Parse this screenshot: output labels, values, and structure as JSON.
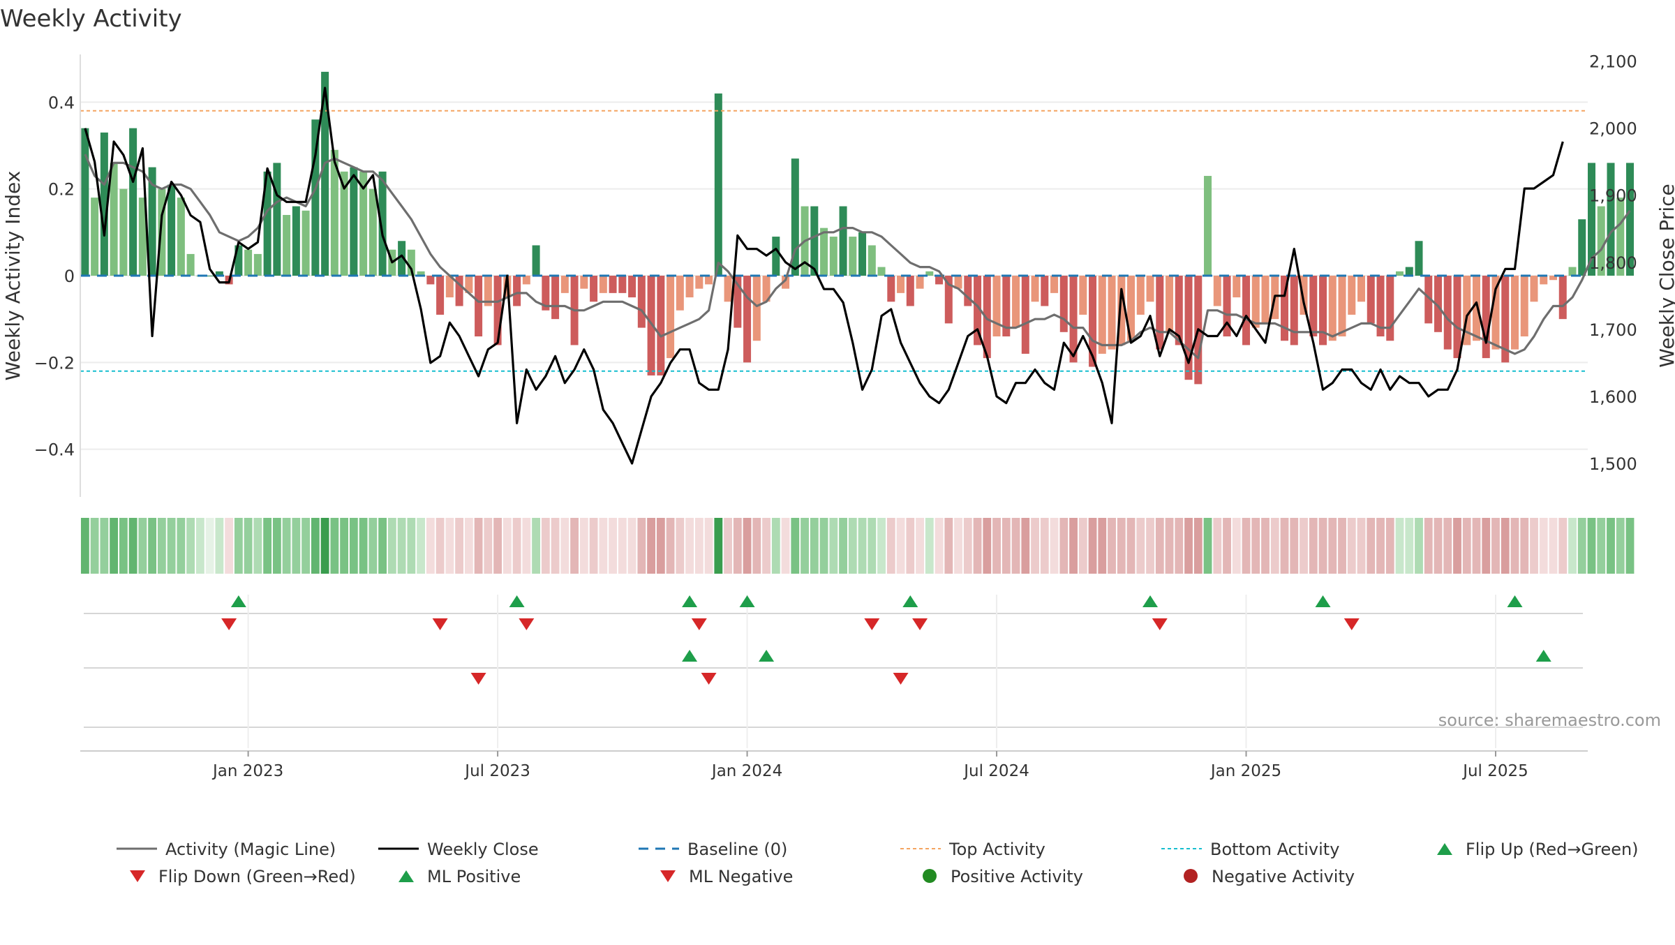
{
  "colors": {
    "bar_strong_green": "#2e8b57",
    "bar_light_green": "#7fbf7f",
    "bar_strong_red": "#cd5c5c",
    "bar_light_red": "#e9967a",
    "magic_line": "#6e6e6e",
    "close_line": "#000000",
    "baseline": "#1f77b4",
    "top_line": "#f4a460",
    "bottom_line": "#17becf",
    "marker_up": "#1e9e4a",
    "marker_down": "#d62728",
    "marker_pos": "#228b22",
    "marker_neg": "#b22222"
  },
  "chart_data": {
    "type": "bar",
    "title": "Weekly Activity",
    "ylabel": "Weekly Activity Index",
    "y2label": "Weekly Close Price",
    "ylim": [
      -0.51,
      0.51
    ],
    "y2lim": [
      1450,
      2110
    ],
    "yticks": [
      {
        "value": 0.4,
        "label": "0.4"
      },
      {
        "value": 0.2,
        "label": "0.2"
      },
      {
        "value": 0,
        "label": "0"
      },
      {
        "value": -0.2,
        "label": "−0.2"
      },
      {
        "value": -0.4,
        "label": "−0.4"
      }
    ],
    "y2ticks": [
      {
        "value": 2100,
        "label": "2,100"
      },
      {
        "value": 2000,
        "label": "2,000"
      },
      {
        "value": 1900,
        "label": "1,900"
      },
      {
        "value": 1800,
        "label": "1,800"
      },
      {
        "value": 1700,
        "label": "1,700"
      },
      {
        "value": 1600,
        "label": "1,600"
      },
      {
        "value": 1500,
        "label": "1,500"
      }
    ],
    "xticks": [
      {
        "week": 17,
        "label": "Jan 2023"
      },
      {
        "week": 43,
        "label": "Jul 2023"
      },
      {
        "week": 69,
        "label": "Jan 2024"
      },
      {
        "week": 95,
        "label": "Jul 2024"
      },
      {
        "week": 121,
        "label": "Jan 2025"
      },
      {
        "week": 147,
        "label": "Jul 2025"
      }
    ],
    "x_domain": [
      -0.5,
      156.6
    ],
    "top_activity": 0.38,
    "bottom_activity": -0.22,
    "baseline": 0,
    "activity_values": [
      0.34,
      0.18,
      0.33,
      0.26,
      0.2,
      0.34,
      0.18,
      0.25,
      0.2,
      0.21,
      0.18,
      0.05,
      0.0,
      0.0,
      0.01,
      -0.02,
      0.07,
      0.06,
      0.05,
      0.24,
      0.26,
      0.14,
      0.16,
      0.15,
      0.36,
      0.47,
      0.29,
      0.24,
      0.25,
      0.24,
      0.2,
      0.24,
      0.06,
      0.08,
      0.06,
      0.01,
      -0.02,
      -0.09,
      -0.05,
      -0.07,
      -0.04,
      -0.14,
      -0.07,
      -0.16,
      -0.05,
      -0.07,
      -0.02,
      0.07,
      -0.08,
      -0.1,
      -0.04,
      -0.16,
      -0.03,
      -0.06,
      -0.04,
      -0.04,
      -0.04,
      -0.05,
      -0.12,
      -0.23,
      -0.23,
      -0.19,
      -0.08,
      -0.05,
      -0.03,
      -0.02,
      0.42,
      -0.06,
      -0.12,
      -0.2,
      -0.15,
      -0.06,
      0.09,
      -0.03,
      0.27,
      0.16,
      0.16,
      0.11,
      0.09,
      0.16,
      0.09,
      0.1,
      0.07,
      0.02,
      -0.06,
      -0.04,
      -0.07,
      -0.03,
      0.01,
      -0.02,
      -0.11,
      -0.03,
      -0.07,
      -0.16,
      -0.19,
      -0.14,
      -0.14,
      -0.12,
      -0.18,
      -0.06,
      -0.07,
      -0.04,
      -0.13,
      -0.2,
      -0.09,
      -0.21,
      -0.18,
      -0.17,
      -0.16,
      -0.15,
      -0.09,
      -0.06,
      -0.17,
      -0.13,
      -0.16,
      -0.24,
      -0.25,
      0.23,
      -0.07,
      -0.14,
      -0.05,
      -0.16,
      -0.12,
      -0.11,
      -0.1,
      -0.15,
      -0.16,
      -0.09,
      -0.14,
      -0.16,
      -0.15,
      -0.14,
      -0.09,
      -0.06,
      -0.11,
      -0.14,
      -0.15,
      0.01,
      0.02,
      0.08,
      -0.11,
      -0.13,
      -0.17,
      -0.19,
      -0.16,
      -0.15,
      -0.19,
      -0.17,
      -0.2,
      -0.17,
      -0.14,
      -0.06,
      -0.02,
      -0.01,
      -0.1,
      0.02,
      0.13,
      0.26,
      0.16,
      0.26,
      0.18,
      0.26
    ],
    "magic_line_values": [
      0.28,
      0.23,
      0.21,
      0.26,
      0.26,
      0.25,
      0.24,
      0.21,
      0.2,
      0.21,
      0.21,
      0.2,
      0.17,
      0.14,
      0.1,
      0.09,
      0.08,
      0.09,
      0.11,
      0.15,
      0.17,
      0.18,
      0.17,
      0.16,
      0.2,
      0.26,
      0.27,
      0.26,
      0.25,
      0.24,
      0.24,
      0.22,
      0.19,
      0.16,
      0.13,
      0.09,
      0.05,
      0.02,
      0.0,
      -0.02,
      -0.04,
      -0.06,
      -0.06,
      -0.06,
      -0.05,
      -0.04,
      -0.04,
      -0.06,
      -0.07,
      -0.07,
      -0.07,
      -0.08,
      -0.08,
      -0.07,
      -0.06,
      -0.06,
      -0.06,
      -0.07,
      -0.08,
      -0.11,
      -0.14,
      -0.13,
      -0.12,
      -0.11,
      -0.1,
      -0.08,
      0.03,
      0.01,
      -0.02,
      -0.05,
      -0.07,
      -0.06,
      -0.03,
      -0.01,
      0.06,
      0.08,
      0.09,
      0.1,
      0.1,
      0.11,
      0.11,
      0.1,
      0.1,
      0.09,
      0.07,
      0.05,
      0.03,
      0.02,
      0.02,
      0.01,
      -0.02,
      -0.03,
      -0.05,
      -0.07,
      -0.1,
      -0.11,
      -0.12,
      -0.12,
      -0.11,
      -0.1,
      -0.1,
      -0.09,
      -0.1,
      -0.12,
      -0.12,
      -0.15,
      -0.16,
      -0.16,
      -0.16,
      -0.15,
      -0.13,
      -0.12,
      -0.13,
      -0.13,
      -0.15,
      -0.17,
      -0.19,
      -0.08,
      -0.08,
      -0.09,
      -0.09,
      -0.1,
      -0.11,
      -0.11,
      -0.11,
      -0.12,
      -0.13,
      -0.13,
      -0.13,
      -0.13,
      -0.14,
      -0.13,
      -0.12,
      -0.11,
      -0.11,
      -0.12,
      -0.12,
      -0.09,
      -0.06,
      -0.03,
      -0.05,
      -0.07,
      -0.1,
      -0.12,
      -0.13,
      -0.14,
      -0.15,
      -0.16,
      -0.17,
      -0.18,
      -0.17,
      -0.14,
      -0.1,
      -0.07,
      -0.07,
      -0.05,
      -0.01,
      0.04,
      0.06,
      0.1,
      0.12,
      0.15
    ],
    "close_values": [
      2000,
      1950,
      1840,
      1980,
      1960,
      1920,
      1970,
      1690,
      1870,
      1920,
      1900,
      1870,
      1860,
      1790,
      1770,
      1770,
      1830,
      1820,
      1830,
      1940,
      1900,
      1890,
      1890,
      1890,
      1960,
      2060,
      1950,
      1910,
      1930,
      1910,
      1930,
      1840,
      1800,
      1810,
      1790,
      1730,
      1650,
      1660,
      1710,
      1690,
      1660,
      1630,
      1670,
      1680,
      1780,
      1560,
      1640,
      1610,
      1630,
      1660,
      1620,
      1640,
      1670,
      1640,
      1580,
      1560,
      1530,
      1500,
      1550,
      1600,
      1620,
      1650,
      1670,
      1670,
      1620,
      1610,
      1610,
      1670,
      1840,
      1820,
      1820,
      1810,
      1820,
      1800,
      1790,
      1800,
      1790,
      1760,
      1760,
      1740,
      1680,
      1610,
      1640,
      1720,
      1730,
      1680,
      1650,
      1620,
      1600,
      1590,
      1610,
      1650,
      1690,
      1700,
      1660,
      1600,
      1590,
      1620,
      1620,
      1640,
      1620,
      1610,
      1680,
      1660,
      1690,
      1660,
      1620,
      1560,
      1760,
      1680,
      1690,
      1720,
      1660,
      1700,
      1690,
      1650,
      1700,
      1690,
      1690,
      1710,
      1690,
      1720,
      1700,
      1680,
      1750,
      1750,
      1820,
      1740,
      1680,
      1610,
      1620,
      1640,
      1640,
      1620,
      1610,
      1640,
      1610,
      1630,
      1620,
      1620,
      1600,
      1610,
      1610,
      1640,
      1720,
      1740,
      1680,
      1760,
      1790,
      1790,
      1910,
      1910,
      1920,
      1930,
      1980
    ],
    "heat_strip": [
      5,
      3,
      3,
      5,
      4,
      5,
      3,
      4,
      3,
      3,
      3,
      2,
      1,
      0,
      1,
      -1,
      3,
      3,
      2,
      4,
      4,
      3,
      3,
      3,
      5,
      6,
      4,
      4,
      4,
      4,
      3,
      4,
      2,
      2,
      2,
      1,
      -1,
      -2,
      -1,
      -2,
      -1,
      -3,
      -2,
      -3,
      -1,
      -2,
      -1,
      2,
      -2,
      -2,
      -1,
      -3,
      -1,
      -2,
      -1,
      -1,
      -1,
      -1,
      -3,
      -4,
      -4,
      -3,
      -2,
      -1,
      -1,
      -1,
      6,
      -2,
      -3,
      -4,
      -3,
      -2,
      2,
      -1,
      4,
      3,
      3,
      3,
      2,
      3,
      2,
      2,
      2,
      1,
      -2,
      -1,
      -2,
      -1,
      1,
      -1,
      -3,
      -1,
      -2,
      -3,
      -4,
      -3,
      -3,
      -3,
      -4,
      -2,
      -2,
      -1,
      -3,
      -4,
      -2,
      -4,
      -4,
      -3,
      -3,
      -3,
      -2,
      -2,
      -3,
      -3,
      -3,
      -4,
      -4,
      4,
      -2,
      -3,
      -1,
      -3,
      -3,
      -3,
      -2,
      -3,
      -3,
      -2,
      -3,
      -3,
      -3,
      -3,
      -2,
      -2,
      -3,
      -3,
      -3,
      1,
      1,
      2,
      -3,
      -3,
      -3,
      -4,
      -3,
      -3,
      -4,
      -3,
      -4,
      -3,
      -3,
      -2,
      -1,
      -1,
      -2,
      1,
      3,
      4,
      3,
      4,
      3,
      4
    ],
    "flip_up": [
      16,
      45,
      63,
      69,
      86,
      111,
      129,
      149
    ],
    "flip_down": [
      15,
      37,
      46,
      64,
      82,
      87,
      112,
      132
    ],
    "ml_positive": [
      63,
      71,
      152
    ],
    "ml_negative": [
      41,
      65,
      85
    ],
    "source_note": "source: sharemaestro.com",
    "legend": [
      {
        "key": "magic",
        "label": "Activity (Magic Line)"
      },
      {
        "key": "close",
        "label": "Weekly Close"
      },
      {
        "key": "baseline",
        "label": "Baseline (0)"
      },
      {
        "key": "top",
        "label": "Top Activity"
      },
      {
        "key": "bottom",
        "label": "Bottom Activity"
      },
      {
        "key": "flip_up",
        "label": "Flip Up (Red→Green)"
      },
      {
        "key": "flip_down",
        "label": "Flip Down (Green→Red)"
      },
      {
        "key": "ml_pos",
        "label": "ML Positive"
      },
      {
        "key": "ml_neg",
        "label": "ML Negative"
      },
      {
        "key": "pos_act",
        "label": "Positive Activity"
      },
      {
        "key": "neg_act",
        "label": "Negative Activity"
      }
    ]
  }
}
